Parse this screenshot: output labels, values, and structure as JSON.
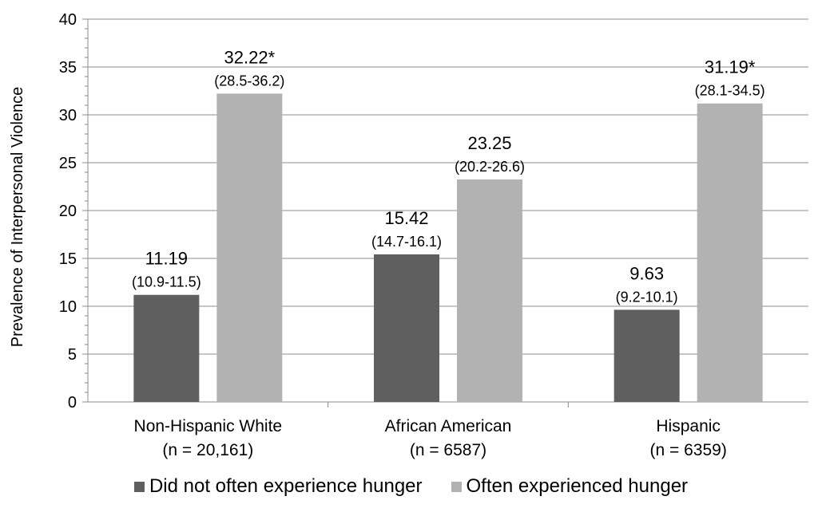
{
  "chart_data": {
    "type": "bar",
    "title": "",
    "xlabel": "",
    "ylabel": "Prevalence of Interpersonal Violence",
    "ylim": [
      0,
      40
    ],
    "ytick_step": 5,
    "minor_tick_step": 1,
    "grid": true,
    "legend_position": "bottom",
    "categories": [
      {
        "name": "Non-Hispanic White",
        "n_label": "(n = 20,161)"
      },
      {
        "name": "African American",
        "n_label": "(n = 6587)"
      },
      {
        "name": "Hispanic",
        "n_label": "(n = 6359)"
      }
    ],
    "series": [
      {
        "name": "Did not often experience hunger",
        "color": "#5f5f5f",
        "values": [
          11.19,
          15.42,
          9.63
        ],
        "value_labels": [
          "11.19",
          "15.42",
          "9.63"
        ],
        "ci_labels": [
          "(10.9-11.5)",
          "(14.7-16.1)",
          "(9.2-10.1)"
        ]
      },
      {
        "name": "Often experienced hunger",
        "color": "#b2b2b2",
        "values": [
          32.22,
          23.25,
          31.19
        ],
        "value_labels": [
          "32.22*",
          "23.25",
          "31.19*"
        ],
        "ci_labels": [
          "(28.5-36.2)",
          "(20.2-26.6)",
          "(28.1-34.5)"
        ]
      }
    ]
  }
}
